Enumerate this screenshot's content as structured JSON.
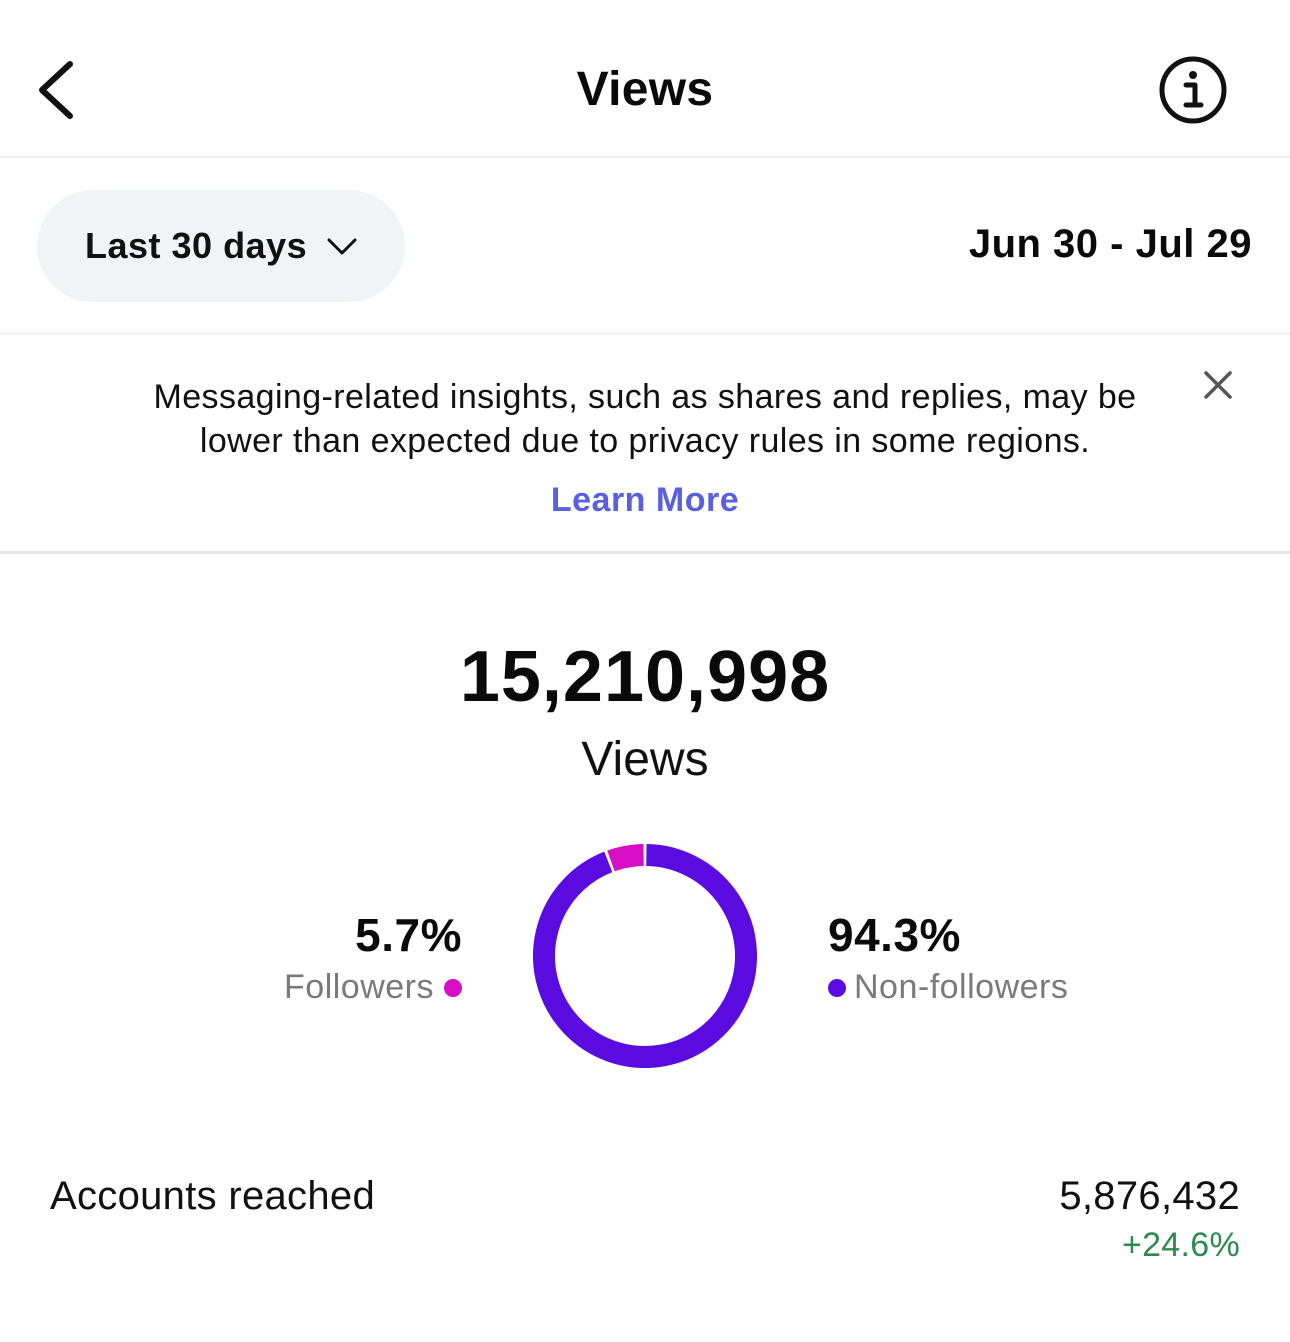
{
  "header": {
    "title": "Views",
    "back_icon": "chevron-left-icon",
    "info_icon": "info-icon"
  },
  "filter": {
    "period_label": "Last 30 days",
    "date_range": "Jun 30 - Jul 29"
  },
  "notice": {
    "message": "Messaging-related insights, such as shares and replies, may be lower than expected due to privacy rules in some regions.",
    "link_label": "Learn More",
    "link_color": "#5a5fe0"
  },
  "summary": {
    "total_value": "15,210,998",
    "total_label": "Views"
  },
  "breakdown": {
    "followers": {
      "percent_label": "5.7%",
      "label": "Followers",
      "value": 5.7,
      "color": "#d60fc4"
    },
    "non_followers": {
      "percent_label": "94.3%",
      "label": "Non-followers",
      "value": 94.3,
      "color": "#5a0ce0"
    }
  },
  "chart_data": {
    "type": "pie",
    "categories": [
      "Followers",
      "Non-followers"
    ],
    "values": [
      5.7,
      94.3
    ],
    "colors": [
      "#d60fc4",
      "#5a0ce0"
    ],
    "title": "",
    "donut": true
  },
  "metrics": [
    {
      "label": "Accounts reached",
      "value": "5,876,432",
      "change": "+24.6%",
      "change_color": "#2e8a4e"
    }
  ]
}
